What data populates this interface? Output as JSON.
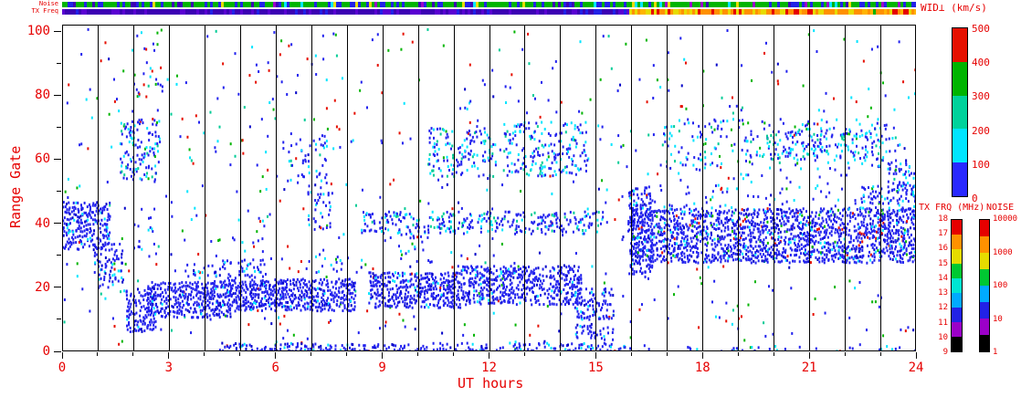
{
  "strips": {
    "noise_label": "Noise",
    "txfreq_label": "TX Freq",
    "noise_spans": [
      {
        "t": [
          0,
          24.01
        ],
        "palette": [
          [
            "#00b400",
            0.58
          ],
          [
            "#2222e6",
            0.2
          ],
          [
            "#3c00b4",
            0.08
          ],
          [
            "#00e5ff",
            0.06
          ],
          [
            "#9b00c8",
            0.04
          ],
          [
            "#e6dc00",
            0.04
          ]
        ]
      }
    ],
    "txfreq_spans": [
      {
        "t": [
          0,
          15.9
        ],
        "palette": [
          [
            "#3c00b4",
            0.6
          ],
          [
            "#5a00d2",
            0.25
          ],
          [
            "#2222e6",
            0.15
          ]
        ]
      },
      {
        "t": [
          15.9,
          24.01
        ],
        "palette": [
          [
            "#ff9100",
            0.5
          ],
          [
            "#e6dc00",
            0.22
          ],
          [
            "#e60000",
            0.14
          ],
          [
            "#ffb400",
            0.1
          ],
          [
            "#00b400",
            0.04
          ]
        ]
      }
    ]
  },
  "colorbars": {
    "wid": {
      "title": "WID⊥ (km/s)",
      "labels": [
        "0",
        "100",
        "200",
        "300",
        "400",
        "500"
      ],
      "colors": [
        "#2828ff",
        "#00e5ff",
        "#00d29b",
        "#00b400",
        "#e61000"
      ]
    },
    "txfrq": {
      "title": "TX FRQ (MHz)",
      "labels": [
        "9",
        "10",
        "11",
        "12",
        "13",
        "14",
        "15",
        "16",
        "17",
        "18"
      ],
      "colors": [
        "#000000",
        "#9b00c8",
        "#2222e6",
        "#00aaff",
        "#00e5d2",
        "#00c832",
        "#e6dc00",
        "#ff9100",
        "#e60000"
      ]
    },
    "noise": {
      "title": "NOISE",
      "labels": [
        "1",
        "10",
        "100",
        "1000",
        "10000"
      ],
      "colors": [
        "#000000",
        "#9b00c8",
        "#2222e6",
        "#00aaff",
        "#00c832",
        "#e6dc00",
        "#ff9100",
        "#e60000"
      ]
    }
  },
  "chart_data": {
    "type": "heatmap",
    "title": "",
    "xlabel": "UT hours",
    "ylabel": "Range Gate",
    "xlim": [
      0,
      24
    ],
    "ylim": [
      0,
      102
    ],
    "x_major_ticks": [
      0,
      3,
      6,
      9,
      12,
      15,
      18,
      21,
      24
    ],
    "x_minor_step": 1,
    "y_major_ticks": [
      0,
      20,
      40,
      60,
      80,
      100
    ],
    "y_minor_step": 10,
    "grid": "vertical black lines every 1 hour",
    "value_scale": "WID⊥ (km/s), 0-500",
    "palette": {
      "b": "#2222ee",
      "B": "#0000c8",
      "c": "#00e5ff",
      "t": "#00cc96",
      "g": "#00b400",
      "r": "#e61000"
    },
    "regions": [
      {
        "t": [
          0,
          24
        ],
        "g": [
          0,
          101
        ],
        "density": 0.016,
        "colors": [
          [
            "b",
            0.4
          ],
          [
            "c",
            0.15
          ],
          [
            "g",
            0.15
          ],
          [
            "r",
            0.18
          ],
          [
            "t",
            0.07
          ],
          [
            "B",
            0.05
          ]
        ]
      },
      {
        "t": [
          0,
          1.4
        ],
        "g": [
          32,
          47
        ],
        "density": 0.5,
        "colors": [
          [
            "b",
            0.82
          ],
          [
            "B",
            0.1
          ],
          [
            "c",
            0.08
          ]
        ]
      },
      {
        "t": [
          0.9,
          1.7
        ],
        "g": [
          20,
          34
        ],
        "density": 0.28,
        "colors": [
          [
            "b",
            0.8
          ],
          [
            "c",
            0.12
          ],
          [
            "B",
            0.08
          ]
        ]
      },
      {
        "t": [
          1.6,
          2.7
        ],
        "g": [
          54,
          73
        ],
        "density": 0.3,
        "colors": [
          [
            "b",
            0.6
          ],
          [
            "c",
            0.25
          ],
          [
            "t",
            0.1
          ],
          [
            "g",
            0.05
          ]
        ]
      },
      {
        "t": [
          1.9,
          2.8
        ],
        "g": [
          80,
          101
        ],
        "density": 0.05,
        "colors": [
          [
            "b",
            0.5
          ],
          [
            "c",
            0.2
          ],
          [
            "g",
            0.15
          ],
          [
            "r",
            0.15
          ]
        ]
      },
      {
        "t": [
          1.8,
          2.6
        ],
        "g": [
          6,
          20
        ],
        "density": 0.45,
        "colors": [
          [
            "b",
            0.85
          ],
          [
            "B",
            0.1
          ],
          [
            "c",
            0.05
          ]
        ]
      },
      {
        "t": [
          2.4,
          4.7
        ],
        "g": [
          11,
          22
        ],
        "density": 0.6,
        "colors": [
          [
            "b",
            0.85
          ],
          [
            "B",
            0.1
          ],
          [
            "c",
            0.05
          ]
        ]
      },
      {
        "t": [
          3.4,
          5.7
        ],
        "g": [
          20,
          29
        ],
        "density": 0.22,
        "colors": [
          [
            "b",
            0.8
          ],
          [
            "c",
            0.15
          ],
          [
            "B",
            0.05
          ]
        ]
      },
      {
        "t": [
          4.7,
          8.2
        ],
        "g": [
          13,
          23
        ],
        "density": 0.62,
        "colors": [
          [
            "b",
            0.85
          ],
          [
            "B",
            0.1
          ],
          [
            "c",
            0.05
          ]
        ]
      },
      {
        "t": [
          8.6,
          11.2
        ],
        "g": [
          14,
          25
        ],
        "density": 0.58,
        "colors": [
          [
            "b",
            0.85
          ],
          [
            "B",
            0.1
          ],
          [
            "c",
            0.05
          ]
        ]
      },
      {
        "t": [
          11.2,
          14.6
        ],
        "g": [
          15,
          27
        ],
        "density": 0.58,
        "colors": [
          [
            "b",
            0.85
          ],
          [
            "B",
            0.1
          ],
          [
            "c",
            0.05
          ]
        ]
      },
      {
        "t": [
          14.4,
          15.5
        ],
        "g": [
          4,
          20
        ],
        "density": 0.32,
        "colors": [
          [
            "b",
            0.8
          ],
          [
            "B",
            0.1
          ],
          [
            "c",
            0.1
          ]
        ]
      },
      {
        "t": [
          4.4,
          15.8
        ],
        "g": [
          0,
          3
        ],
        "density": 0.4,
        "colors": [
          [
            "b",
            0.8
          ],
          [
            "B",
            0.1
          ],
          [
            "c",
            0.1
          ]
        ]
      },
      {
        "t": [
          15.8,
          24
        ],
        "g": [
          0,
          2
        ],
        "density": 0.1,
        "colors": [
          [
            "b",
            0.8
          ],
          [
            "c",
            0.2
          ]
        ]
      },
      {
        "t": [
          8.4,
          15.2
        ],
        "g": [
          37,
          44
        ],
        "density": 0.3,
        "colors": [
          [
            "b",
            0.7
          ],
          [
            "c",
            0.2
          ],
          [
            "t",
            0.1
          ]
        ]
      },
      {
        "t": [
          6.9,
          7.5
        ],
        "g": [
          38,
          52
        ],
        "density": 0.15,
        "colors": [
          [
            "b",
            0.7
          ],
          [
            "c",
            0.3
          ]
        ]
      },
      {
        "t": [
          6.2,
          7.4
        ],
        "g": [
          52,
          68
        ],
        "density": 0.12,
        "colors": [
          [
            "b",
            0.6
          ],
          [
            "c",
            0.3
          ],
          [
            "t",
            0.1
          ]
        ]
      },
      {
        "t": [
          10.2,
          12.2
        ],
        "g": [
          55,
          70
        ],
        "density": 0.2,
        "colors": [
          [
            "b",
            0.6
          ],
          [
            "c",
            0.3
          ],
          [
            "t",
            0.1
          ]
        ]
      },
      {
        "t": [
          12.4,
          14.8
        ],
        "g": [
          55,
          72
        ],
        "density": 0.24,
        "colors": [
          [
            "b",
            0.6
          ],
          [
            "c",
            0.3
          ],
          [
            "t",
            0.1
          ]
        ]
      },
      {
        "t": [
          9.4,
          10.4
        ],
        "g": [
          28,
          38
        ],
        "density": 0.1,
        "colors": [
          [
            "b",
            0.7
          ],
          [
            "c",
            0.3
          ]
        ]
      },
      {
        "t": [
          5.0,
          8.0
        ],
        "g": [
          25,
          36
        ],
        "density": 0.05,
        "colors": [
          [
            "b",
            0.7
          ],
          [
            "c",
            0.3
          ]
        ]
      },
      {
        "t": [
          2.0,
          2.6
        ],
        "g": [
          30,
          45
        ],
        "density": 0.12,
        "colors": [
          [
            "b",
            0.7
          ],
          [
            "c",
            0.3
          ]
        ]
      },
      {
        "t": [
          15.9,
          16.6
        ],
        "g": [
          24,
          52
        ],
        "density": 0.4,
        "colors": [
          [
            "b",
            0.8
          ],
          [
            "B",
            0.1
          ],
          [
            "c",
            0.1
          ]
        ]
      },
      {
        "t": [
          16.0,
          24
        ],
        "g": [
          28,
          45
        ],
        "density": 0.55,
        "colors": [
          [
            "b",
            0.8
          ],
          [
            "B",
            0.1
          ],
          [
            "c",
            0.06
          ],
          [
            "r",
            0.02
          ],
          [
            "g",
            0.02
          ]
        ]
      },
      {
        "t": [
          16.6,
          22.4
        ],
        "g": [
          45,
          56
        ],
        "density": 0.05,
        "colors": [
          [
            "b",
            0.7
          ],
          [
            "c",
            0.3
          ]
        ]
      },
      {
        "t": [
          22.4,
          24
        ],
        "g": [
          44,
          52
        ],
        "density": 0.3,
        "colors": [
          [
            "b",
            0.8
          ],
          [
            "c",
            0.2
          ]
        ]
      },
      {
        "t": [
          23.2,
          24
        ],
        "g": [
          50,
          60
        ],
        "density": 0.3,
        "colors": [
          [
            "b",
            0.7
          ],
          [
            "c",
            0.3
          ]
        ]
      },
      {
        "t": [
          16.8,
          23.6
        ],
        "g": [
          57,
          73
        ],
        "density": 0.1,
        "colors": [
          [
            "b",
            0.5
          ],
          [
            "c",
            0.3
          ],
          [
            "t",
            0.1
          ],
          [
            "g",
            0.1
          ]
        ]
      },
      {
        "t": [
          19.8,
          23.2
        ],
        "g": [
          60,
          70
        ],
        "density": 0.16,
        "colors": [
          [
            "b",
            0.5
          ],
          [
            "c",
            0.4
          ],
          [
            "t",
            0.1
          ]
        ]
      }
    ]
  }
}
